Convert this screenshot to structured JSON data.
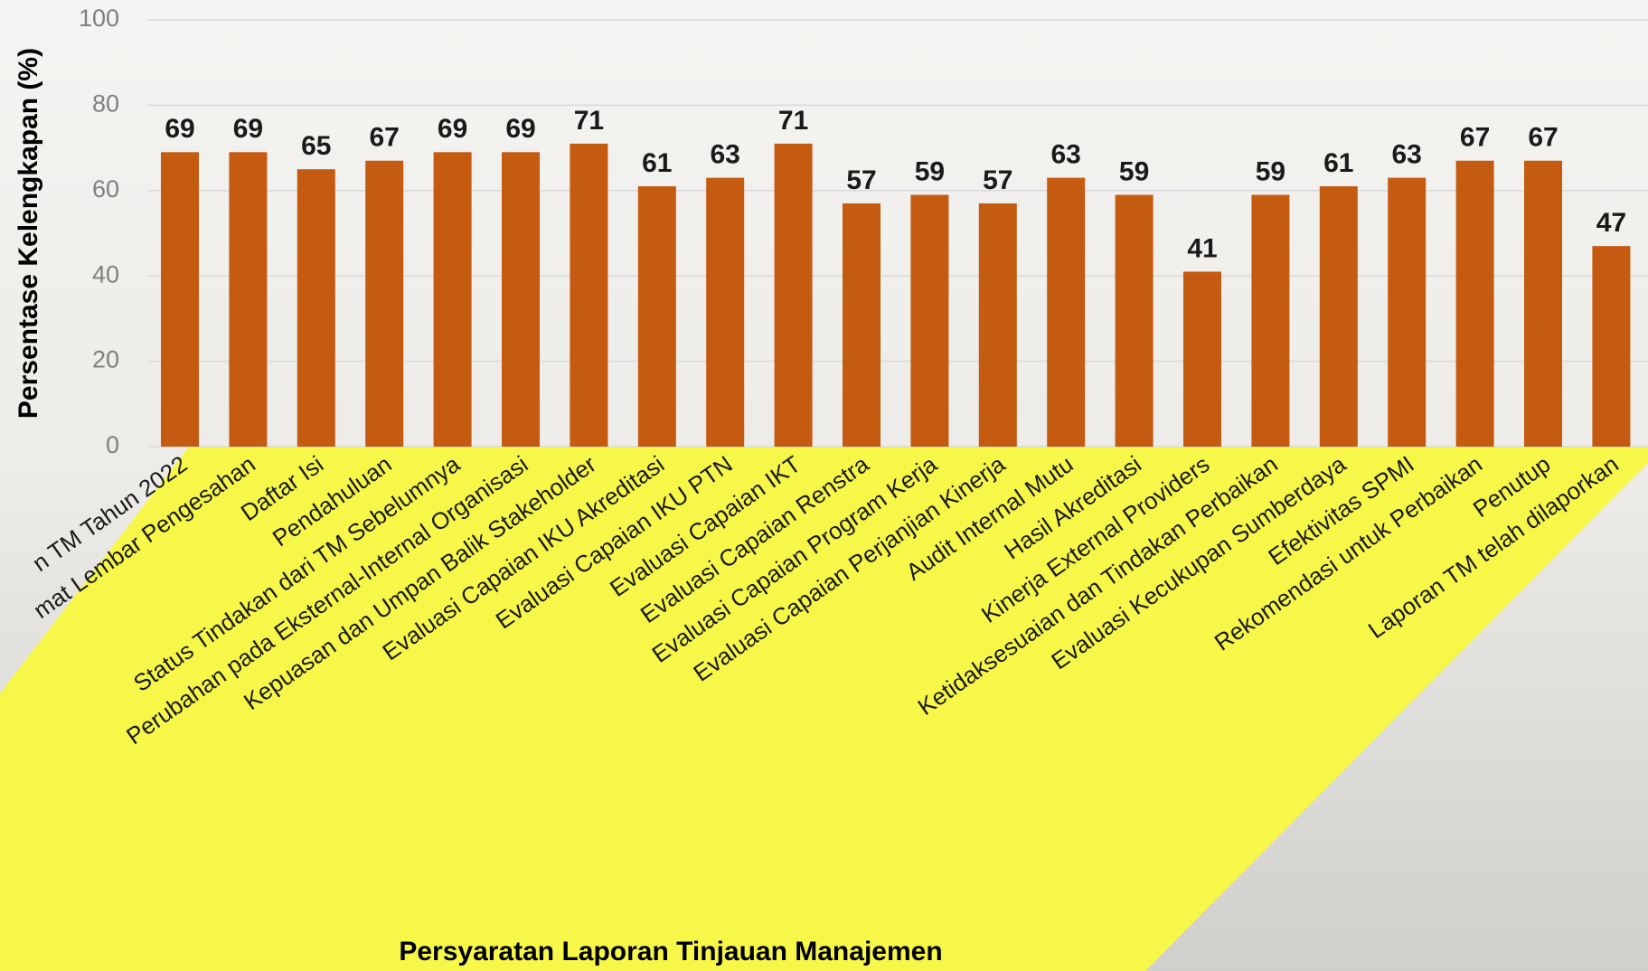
{
  "chart_data": {
    "type": "bar",
    "x_label": "Persyaratan Laporan Tinjauan Manajemen",
    "y_label": "Persentase Kelengkapan (%)",
    "categories": [
      "n TM Tahun 2022",
      "mat Lembar Pengesahan",
      "Daftar Isi",
      "Pendahuluan",
      "Status Tindakan dari TM Sebelumnya",
      "Perubahan pada Eksternal-Internal Organisasi",
      "Kepuasan dan Umpan Balik Stakeholder",
      "Evaluasi Capaian IKU Akreditasi",
      "Evaluasi Capaian IKU PTN",
      "Evaluasi Capaian IKT",
      "Evaluasi Capaian Renstra",
      "Evaluasi Capaian Program Kerja",
      "Evaluasi Capaian Perjanjian Kinerja",
      "Audit Internal Mutu",
      "Hasil Akreditasi",
      "Kinerja External Providers",
      "Ketidaksesuaian dan Tindakan Perbaikan",
      "Evaluasi Kecukupan Sumberdaya",
      "Efektivitas SPMI",
      "Rekomendasi untuk Perbaikan",
      "Penutup",
      "Laporan TM telah dilaporkan"
    ],
    "values": [
      69,
      69,
      65,
      67,
      69,
      69,
      71,
      61,
      63,
      71,
      57,
      59,
      57,
      63,
      59,
      41,
      59,
      61,
      63,
      67,
      67,
      47
    ],
    "color": "#c55a11",
    "ylim": [
      0,
      100
    ],
    "yticks": [
      0,
      20,
      40,
      60,
      80,
      100
    ],
    "grid": true
  }
}
